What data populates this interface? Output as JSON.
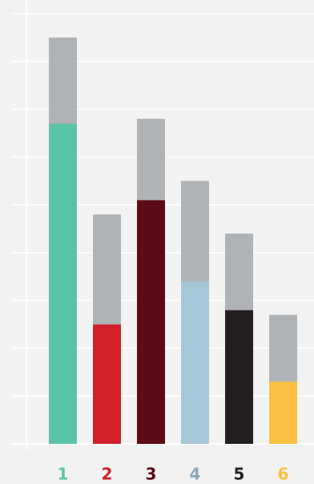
{
  "chart_data": {
    "type": "bar",
    "stacked": true,
    "categories": [
      "1",
      "2",
      "3",
      "4",
      "5",
      "6"
    ],
    "category_label_colors": [
      "#5cc2a8",
      "#d0202a",
      "#5c0b16",
      "#8aa7bc",
      "#231f20",
      "#fdbf41"
    ],
    "series": [
      {
        "values": [
          6.7,
          2.5,
          5.1,
          3.4,
          2.8,
          1.3
        ],
        "colors": [
          "#5cc2a8",
          "#d0202a",
          "#5c0b16",
          "#a6c6da",
          "#231f20",
          "#fdbf41"
        ]
      },
      {
        "values": [
          1.8,
          2.3,
          1.7,
          2.1,
          1.6,
          1.4
        ],
        "color": "#b0b3b6"
      }
    ],
    "ylim": [
      0,
      9
    ],
    "yticks": [
      0,
      1,
      2,
      3,
      4,
      5,
      6,
      7,
      8,
      9
    ],
    "grid": true
  }
}
